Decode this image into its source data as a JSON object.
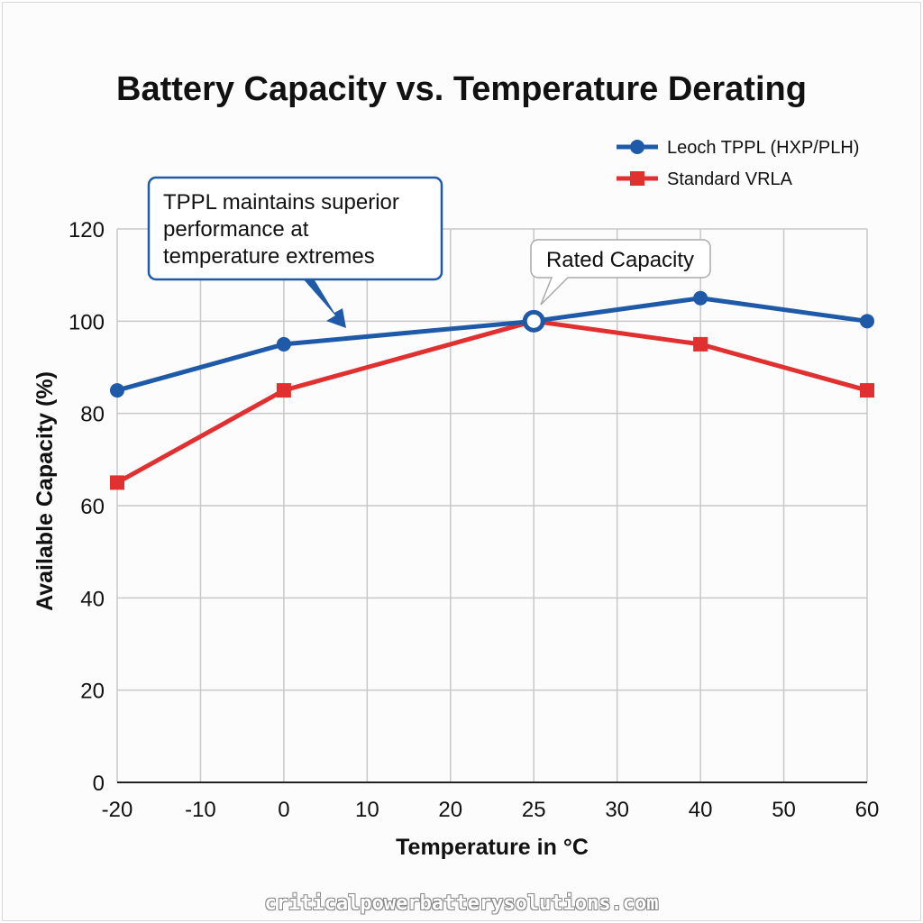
{
  "chart_data": {
    "type": "line",
    "title": "Battery Capacity vs. Temperature Derating",
    "xlabel": "Temperature in °C",
    "ylabel": "Available Capacity (%)",
    "categories": [
      "-20",
      "-10",
      "0",
      "10",
      "20",
      "25",
      "30",
      "40",
      "50",
      "60"
    ],
    "ylim": [
      0,
      120
    ],
    "yticks": [
      "0",
      "20",
      "40",
      "60",
      "80",
      "100",
      "120"
    ],
    "grid": true,
    "legend_position": "top-right",
    "series": [
      {
        "name": "Leoch TPPL (HXP/PLH)",
        "color": "#1f5aa8",
        "marker": "circle",
        "points": [
          {
            "x": "-20",
            "y": 85
          },
          {
            "x": "0",
            "y": 95
          },
          {
            "x": "25",
            "y": 100
          },
          {
            "x": "40",
            "y": 105
          },
          {
            "x": "60",
            "y": 100
          }
        ]
      },
      {
        "name": "Standard VRLA",
        "color": "#e0302f",
        "marker": "square",
        "points": [
          {
            "x": "-20",
            "y": 65
          },
          {
            "x": "0",
            "y": 85
          },
          {
            "x": "25",
            "y": 100
          },
          {
            "x": "40",
            "y": 95
          },
          {
            "x": "60",
            "y": 85
          }
        ]
      }
    ],
    "annotations": [
      {
        "text": "TPPL maintains superior performance at temperature extremes",
        "lines": [
          "TPPL maintains superior",
          "performance at",
          "temperature extremes"
        ]
      },
      {
        "text": "Rated Capacity",
        "x": "25",
        "y": 100
      }
    ]
  },
  "watermark": "criticalpowerbatterysolutions.com"
}
